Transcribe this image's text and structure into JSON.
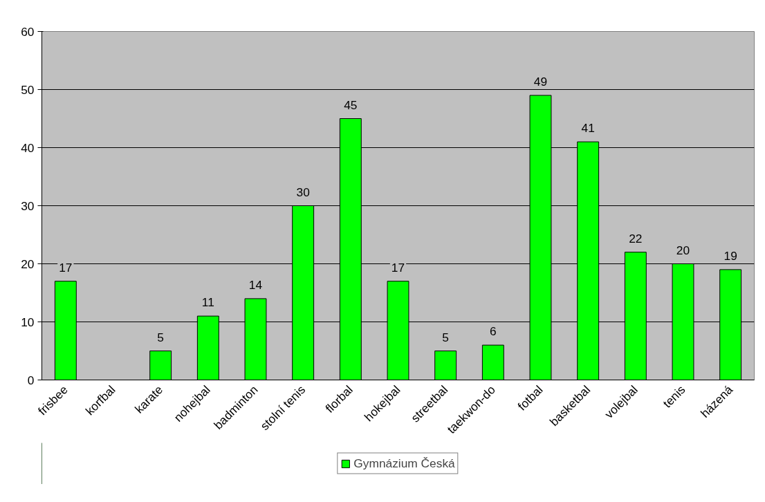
{
  "chart_data": {
    "type": "bar",
    "categories": [
      "frisbee",
      "korfbal",
      "karate",
      "nohejbal",
      "badminton",
      "stolní tenis",
      "florbal",
      "hokejbal",
      "streetbal",
      "taekwon-do",
      "fotbal",
      "basketbal",
      "volejbal",
      "tenis",
      "házená"
    ],
    "series": [
      {
        "name": "Gymnázium Česká",
        "color": "#00ff00",
        "values": [
          17,
          null,
          5,
          11,
          14,
          30,
          45,
          17,
          5,
          6,
          49,
          41,
          22,
          20,
          19
        ]
      }
    ],
    "ylim": [
      0,
      60
    ],
    "yticks": [
      0,
      10,
      20,
      30,
      40,
      50,
      60
    ],
    "grid": "y",
    "legend": "bottom",
    "data_labels": true
  }
}
